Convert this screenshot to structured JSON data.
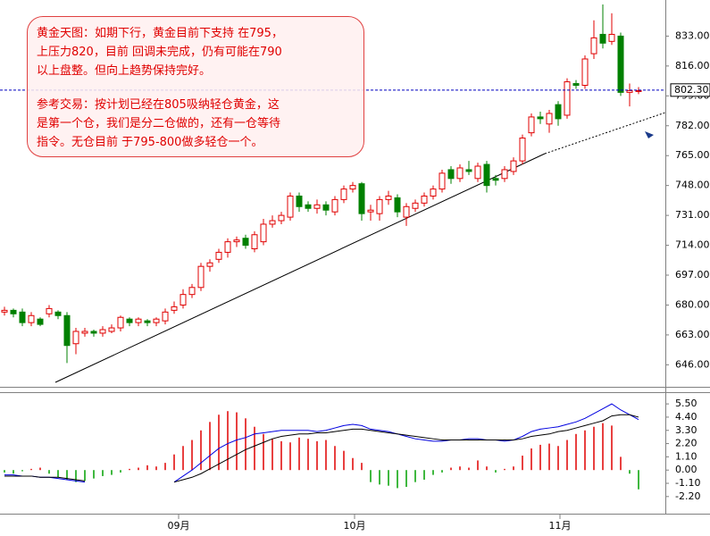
{
  "chart_data": [
    {
      "type": "candlestick",
      "up_color": "#e00000",
      "down_color": "#008000",
      "open": [
        676,
        677,
        676,
        670,
        672,
        675,
        676,
        674,
        658,
        664,
        665,
        664,
        665,
        667,
        672,
        670,
        671,
        670,
        671,
        677,
        680,
        686,
        690,
        702,
        706,
        710,
        716,
        718,
        712,
        716,
        726,
        728,
        730,
        742,
        737,
        735,
        737,
        733,
        740,
        746,
        749,
        733,
        732,
        740,
        741,
        730,
        735,
        738,
        742,
        746,
        757,
        752,
        757,
        752,
        760,
        752,
        752,
        756,
        762,
        778,
        787,
        783,
        794,
        788,
        806,
        805,
        823,
        834,
        830,
        833,
        801,
        802
      ],
      "high": [
        679,
        678,
        678,
        676,
        673,
        680,
        677,
        676,
        667,
        667,
        666,
        668,
        669,
        674,
        673,
        673,
        672,
        673,
        678,
        682,
        689,
        692,
        704,
        706,
        712,
        718,
        719,
        720,
        722,
        729,
        731,
        733,
        744,
        744,
        739,
        740,
        739,
        742,
        748,
        750,
        750,
        737,
        742,
        745,
        743,
        738,
        740,
        744,
        748,
        757,
        759,
        760,
        762,
        761,
        762,
        754,
        759,
        764,
        777,
        789,
        790,
        791,
        796,
        809,
        808,
        822,
        842,
        851,
        846,
        835,
        806,
        804
      ],
      "low": [
        674,
        673,
        668,
        668,
        668,
        673,
        672,
        647,
        652,
        662,
        662,
        662,
        664,
        665,
        668,
        668,
        668,
        668,
        669,
        675,
        678,
        684,
        688,
        699,
        704,
        707,
        713,
        712,
        710,
        714,
        724,
        726,
        728,
        733,
        733,
        732,
        731,
        731,
        738,
        744,
        728,
        728,
        728,
        737,
        730,
        725,
        733,
        736,
        740,
        744,
        749,
        750,
        754,
        750,
        744,
        748,
        750,
        754,
        760,
        776,
        783,
        778,
        782,
        786,
        803,
        803,
        820,
        826,
        828,
        799,
        793,
        800
      ],
      "close": [
        677,
        675,
        670,
        674,
        669,
        678,
        674,
        657,
        665,
        665,
        664,
        666,
        667,
        673,
        670,
        672,
        670,
        672,
        676,
        679,
        686,
        690,
        702,
        704,
        710,
        716,
        717,
        714,
        720,
        726,
        728,
        731,
        742,
        736,
        735,
        737,
        734,
        740,
        746,
        748,
        732,
        734,
        740,
        742,
        733,
        736,
        738,
        742,
        746,
        755,
        752,
        758,
        756,
        759,
        748,
        751,
        757,
        762,
        775,
        787,
        786,
        789,
        786,
        807,
        805,
        820,
        832,
        829,
        834,
        801,
        802,
        802
      ],
      "xlim": [
        -0.5,
        74
      ],
      "ylim": [
        635,
        851
      ],
      "yticks": [
        {
          "value": 646,
          "label": "646.00"
        },
        {
          "value": 663,
          "label": "663.00"
        },
        {
          "value": 680,
          "label": "680.00"
        },
        {
          "value": 697,
          "label": "697.00"
        },
        {
          "value": 714,
          "label": "714.00"
        },
        {
          "value": 731,
          "label": "731.00"
        },
        {
          "value": 748,
          "label": "748.00"
        },
        {
          "value": 765,
          "label": "765.00"
        },
        {
          "value": 782,
          "label": "782.00"
        },
        {
          "value": 799,
          "label": "799.00"
        },
        {
          "value": 816,
          "label": "816.00"
        },
        {
          "value": 833,
          "label": "833.00"
        }
      ],
      "last_price": {
        "value": 802.3,
        "label": "802.30"
      },
      "annotation": {
        "lines": [
          "黄金天图：如期下行，黄金目前下支持 在795，",
          "上压力820，目前 回调未完成，仍有可能在790",
          "以上盘整。但向上趋势保持完好。",
          "参考交易：按计划已经在805吸纳轻仓黄金，这",
          "是第一个仓，我们是分二仓做的，还有一仓等待",
          "指令。无仓目前 于795-800做多轻仓一个。"
        ]
      }
    },
    {
      "type": "macd",
      "xlim": [
        -0.5,
        74
      ],
      "ylim": [
        -3.4,
        6.4
      ],
      "yticks": [
        {
          "value": 5.5,
          "label": "5.50"
        },
        {
          "value": 4.4,
          "label": "4.40"
        },
        {
          "value": 3.3,
          "label": "3.30"
        },
        {
          "value": 2.2,
          "label": "2.20"
        },
        {
          "value": 1.1,
          "label": "1.10"
        },
        {
          "value": 0,
          "label": "0.00"
        },
        {
          "value": -1.1,
          "label": "-1.10"
        },
        {
          "value": -2.2,
          "label": "-2.20"
        }
      ],
      "xticks": [
        {
          "value": 19.5,
          "label": "09月"
        },
        {
          "value": 39.2,
          "label": "10月"
        },
        {
          "value": 62.2,
          "label": "11月"
        }
      ],
      "histogram": {
        "up_color": "#e00000",
        "down_color": "#00a000",
        "values": [
          -0.2,
          -0.3,
          -0.1,
          0.1,
          0.2,
          -0.3,
          -0.6,
          -0.8,
          -1.0,
          -0.9,
          -0.7,
          -0.5,
          -0.4,
          -0.2,
          0.1,
          0.2,
          0.4,
          0.3,
          0.6,
          1.3,
          2.0,
          2.5,
          3.3,
          4.0,
          4.6,
          4.9,
          4.8,
          4.3,
          3.6,
          3.0,
          2.6,
          2.4,
          2.3,
          2.7,
          2.6,
          2.4,
          2.5,
          2.0,
          1.6,
          1.0,
          0.6,
          -1.0,
          -1.2,
          -1.3,
          -1.5,
          -1.4,
          -1.0,
          -0.8,
          -0.4,
          -0.2,
          0.2,
          0.3,
          0.2,
          0.8,
          0.3,
          -0.2,
          0.1,
          0.3,
          1.2,
          1.8,
          2.1,
          2.2,
          2.0,
          2.5,
          3.0,
          3.3,
          3.6,
          3.9,
          3.7,
          1.1,
          -0.3,
          -1.6
        ]
      },
      "series": [
        {
          "color": "#0000e0",
          "values": [
            -0.4,
            -0.4,
            -0.5,
            -0.5,
            -0.6,
            -0.6,
            -0.7,
            -0.8,
            -0.9,
            -1.0,
            null,
            null,
            null,
            null,
            null,
            null,
            null,
            null,
            null,
            -1.0,
            -0.5,
            0.0,
            0.6,
            1.2,
            1.8,
            2.2,
            2.5,
            2.7,
            3.0,
            3.1,
            3.2,
            3.3,
            3.3,
            3.3,
            3.3,
            3.2,
            3.3,
            3.5,
            3.7,
            3.8,
            3.7,
            3.4,
            3.3,
            3.2,
            3.0,
            2.8,
            2.6,
            2.5,
            2.4,
            2.4,
            2.5,
            2.5,
            2.6,
            2.6,
            2.5,
            2.5,
            2.4,
            2.5,
            2.8,
            3.2,
            3.4,
            3.5,
            3.6,
            3.8,
            4.0,
            4.3,
            4.7,
            5.1,
            5.5,
            5.0,
            4.6,
            4.2
          ]
        },
        {
          "color": "#000000",
          "values": [
            -0.5,
            -0.5,
            -0.5,
            -0.5,
            -0.6,
            -0.6,
            -0.6,
            -0.7,
            -0.8,
            -0.9,
            null,
            null,
            null,
            null,
            null,
            null,
            null,
            null,
            null,
            -1.0,
            -0.8,
            -0.6,
            -0.3,
            0.1,
            0.5,
            0.9,
            1.3,
            1.7,
            2.0,
            2.3,
            2.6,
            2.8,
            2.9,
            3.0,
            3.0,
            3.1,
            3.1,
            3.2,
            3.3,
            3.4,
            3.4,
            3.3,
            3.2,
            3.1,
            3.0,
            2.9,
            2.8,
            2.7,
            2.6,
            2.5,
            2.5,
            2.5,
            2.5,
            2.5,
            2.5,
            2.5,
            2.5,
            2.5,
            2.6,
            2.8,
            2.9,
            3.0,
            3.2,
            3.3,
            3.5,
            3.7,
            3.9,
            4.1,
            4.5,
            4.6,
            4.6,
            4.4
          ]
        }
      ]
    }
  ]
}
